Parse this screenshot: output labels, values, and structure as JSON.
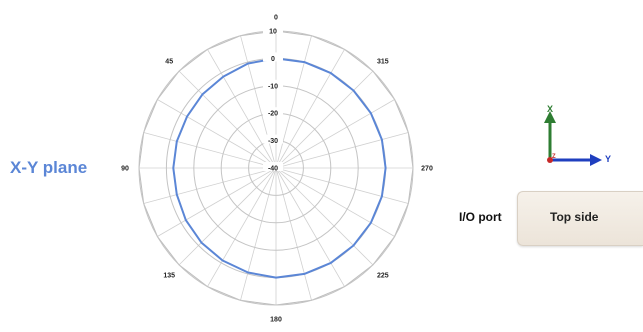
{
  "plane_label": "X-Y plane",
  "io_port_label": "I/O port",
  "device_side_label": "Top side",
  "axes_indicator": {
    "x_label": "X",
    "y_label": "Y",
    "z_label": "Z",
    "colors": {
      "x": "#2e7d32",
      "y": "#1f3fbf",
      "z": "#c62828"
    }
  },
  "chart_data": {
    "type": "line",
    "subtype": "polar",
    "angle_direction": "counterclockwise",
    "angle_zero": "top",
    "angle_tick_labels": [
      "0",
      "45",
      "90",
      "135",
      "180",
      "225",
      "270",
      "315"
    ],
    "radial_tick_labels": [
      "-40",
      "-30",
      "-20",
      "-10",
      "0",
      "10"
    ],
    "rlim": [
      -40,
      10
    ],
    "angle_step_deg": 15,
    "grid": true,
    "series": [
      {
        "color": "#5b86d6",
        "angles_deg": [
          0,
          15,
          30,
          45,
          60,
          75,
          90,
          105,
          120,
          135,
          150,
          165,
          180,
          195,
          210,
          225,
          240,
          255,
          270,
          285,
          300,
          315,
          330,
          345
        ],
        "values": [
          0,
          -0.5,
          -1.5,
          -2,
          -2.5,
          -2.5,
          -2.5,
          -2.5,
          -2,
          -1.5,
          -1,
          -0.5,
          0,
          0,
          0,
          0,
          0,
          0,
          0,
          0,
          0,
          0,
          0,
          0
        ]
      }
    ]
  }
}
